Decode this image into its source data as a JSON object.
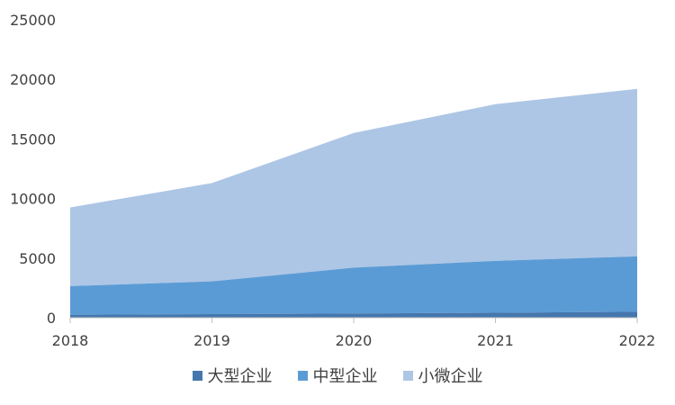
{
  "chart_data": {
    "type": "area",
    "stacked": true,
    "title": "",
    "xlabel": "",
    "ylabel": "",
    "x": [
      "2018",
      "2019",
      "2020",
      "2021",
      "2022"
    ],
    "ylim": [
      0,
      25000
    ],
    "yticks": [
      0,
      5000,
      10000,
      15000,
      20000,
      25000
    ],
    "grid": false,
    "legend_position": "bottom",
    "series": [
      {
        "name": "大型企业",
        "values": [
          250,
          300,
          350,
          420,
          500
        ],
        "color": "#4577ae"
      },
      {
        "name": "中型企业",
        "values": [
          2400,
          2750,
          3850,
          4350,
          4650
        ],
        "color": "#5b9bd5"
      },
      {
        "name": "小微企业",
        "values": [
          6600,
          8250,
          11300,
          13150,
          14050
        ],
        "color": "#adc6e5"
      }
    ]
  }
}
